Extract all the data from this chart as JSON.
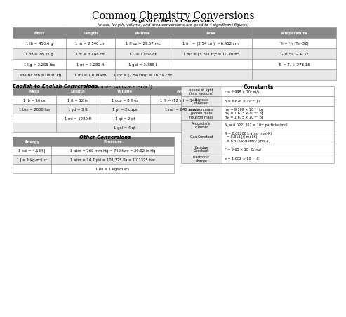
{
  "title": "Common Chemistry Conversions",
  "subtitle1": "English to Metric Conversions",
  "subtitle2": "(mass, length, volume, and area conversions are good to 4 significant figures)",
  "header_bg": "#888888",
  "header_text": "#ffffff",
  "row_bg_alt": "#e8e8e8",
  "row_bg": "#ffffff",
  "table_border": "#888888",
  "bg_color": "#ffffff",
  "metric_headers": [
    "Mass",
    "Length",
    "Volume",
    "Area",
    "Temperature"
  ],
  "metric_rows": [
    [
      "1 lb = 453.6 g",
      "1 in = 2.540 cm",
      "1 fl oz = 29.57 mL",
      "1 in² = (2.54 cm)² =6.452 cm²",
      "Tₙ = ⁵/₉ (Tₔ -32)"
    ],
    [
      "1 oz = 28.35 g",
      "1 ft = 30.48 cm",
      "1 L = 1.057 qt",
      "1 m² = (3.281 ft)² = 10.76 ft²",
      "Tₔ = ⁹/₅ Tₙ + 32"
    ],
    [
      "1 kg = 2.205 lbs",
      "1 m = 3.281 ft",
      "1 gal = 3.785 L",
      "",
      "Tₖ = Tₙ + 273.15"
    ],
    [
      "1 metric ton =1000. kg",
      "1 mi = 1.609 km",
      "1 in³ = (2.54 cm)³ = 16.39 cm³",
      "",
      ""
    ]
  ],
  "english_label": "English to English Conversions.",
  "english_label2": " (all conversions are exact)",
  "english_headers": [
    "Mass",
    "Length",
    "Volume",
    "Area"
  ],
  "english_rows": [
    [
      "1 lb = 16 oz",
      "1 ft = 12 in",
      "1 cup = 8 fl oz",
      "1 ft²= (12 in)²= 144 in²"
    ],
    [
      "1 ton = 2000 lbs",
      "1 yd = 3 ft",
      "1 pt = 2 cups",
      "1 mi² = 640 acres"
    ],
    [
      "",
      "1 mi = 5280 ft",
      "1 qt = 2 pt",
      ""
    ],
    [
      "",
      "",
      "1 gal = 4 qt",
      ""
    ]
  ],
  "other_label": "Other Conversions",
  "other_headers": [
    "Energy",
    "Pressure"
  ],
  "other_rows": [
    [
      "1 cal = 4.184 J",
      "1 atm = 760 mm Hg = 760 torr = 29.92 in Hg"
    ],
    [
      "1 J = 1 kg·m²/ s²",
      "1 atm = 14.7 psi = 101,325 Pa = 1.01325 bar"
    ],
    [
      "",
      "1 Pa = 1 kg/(m·s²)"
    ]
  ],
  "constants_label": "Constants",
  "constants_rows": [
    [
      "speed of light\n(in a vacuum)",
      "c = 2.998 × 10⁸ m/s"
    ],
    [
      "Planck's\nconstant",
      "h = 6.626 × 10⁻³⁴ J·s"
    ],
    [
      "electron mass\nproton mass\nneutron mass",
      "mₑ = 9.109 × 10⁻³¹ kg\nmₚ = 1.673 × 10⁻²⁷ kg\nmₙ = 1.675 × 10⁻²⁷ kg"
    ],
    [
      "Avogadro's\nnumber",
      "N⁁ = 6.0221367 × 10²³ particles/mol"
    ],
    [
      "Gas Constant",
      "R = 0.08206 L·atm/ (mol·K)\n  = 8.315 J/( mol·K)\n  = 8.315 kPa·dm³/ (mol·K)"
    ],
    [
      "Faraday\nConstant",
      "F = 9.65 × 10⁴ C/mol"
    ],
    [
      "Electronic\ncharge",
      "e = 1.602 × 10⁻¹⁹ C"
    ]
  ]
}
